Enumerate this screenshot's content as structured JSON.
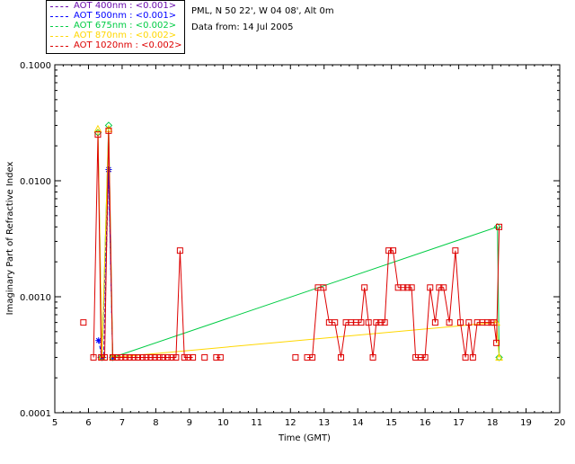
{
  "info": {
    "location": "PML, N 50 22', W 04 08', Alt 0m",
    "date_line": "Data from: 14 Jul 2005"
  },
  "legend": [
    {
      "label": "AOT  400nm : <0.001>",
      "color": "#6a0dad"
    },
    {
      "label": "AOT  500nm : <0.001>",
      "color": "#0000ff"
    },
    {
      "label": "AOT  675nm : <0.002>",
      "color": "#00cc44"
    },
    {
      "label": "AOT  870nm : <0.002>",
      "color": "#ffd700"
    },
    {
      "label": "AOT 1020nm : <0.002>",
      "color": "#dd0000"
    }
  ],
  "chart_data": {
    "type": "line",
    "xlabel": "Time (GMT)",
    "ylabel": "Imaginary Part of Refractive Index",
    "xlim": [
      5,
      20
    ],
    "ylim": [
      0.0001,
      0.1
    ],
    "yscale": "log",
    "x_ticks": [
      "5",
      "6",
      "7",
      "8",
      "9",
      "10",
      "11",
      "12",
      "13",
      "14",
      "15",
      "16",
      "17",
      "18",
      "19",
      "20"
    ],
    "y_ticks": [
      "0.0001",
      "0.0010",
      "0.0100",
      "0.1000"
    ],
    "series": [
      {
        "name": "AOT  400nm : <0.001>",
        "color": "#6a0dad",
        "marker": "cross",
        "points": [
          [
            6.35,
            0.0003
          ],
          [
            6.45,
            0.0003
          ],
          [
            6.6,
            0.012
          ],
          [
            6.72,
            0.0003
          ]
        ]
      },
      {
        "name": "AOT  500nm : <0.001>",
        "color": "#0000ff",
        "marker": "star",
        "points": [
          [
            6.3,
            0.00042
          ],
          [
            6.4,
            0.0003
          ],
          [
            6.6,
            0.0125
          ],
          [
            6.72,
            0.0003
          ]
        ]
      },
      {
        "name": "AOT  675nm : <0.002>",
        "color": "#00cc44",
        "marker": "diamond",
        "points": [
          [
            6.28,
            0.026
          ],
          [
            6.4,
            0.0003
          ],
          [
            6.6,
            0.03
          ],
          [
            6.72,
            0.0003
          ],
          [
            18.15,
            0.004
          ],
          [
            18.2,
            0.0003
          ]
        ]
      },
      {
        "name": "AOT  870nm : <0.002>",
        "color": "#ffd700",
        "marker": "triangle",
        "points": [
          [
            6.28,
            0.028
          ],
          [
            6.4,
            0.0003
          ],
          [
            6.6,
            0.028
          ],
          [
            6.72,
            0.0003
          ],
          [
            18.12,
            0.0006
          ],
          [
            18.2,
            0.0003
          ]
        ]
      },
      {
        "name": "AOT 1020nm : <0.002>",
        "color": "#dd0000",
        "marker": "square",
        "segments": [
          [
            [
              5.85,
              0.0006
            ]
          ],
          [
            [
              6.15,
              0.0003
            ],
            [
              6.28,
              0.025
            ],
            [
              6.38,
              0.0003
            ],
            [
              6.48,
              0.0003
            ],
            [
              6.6,
              0.027
            ],
            [
              6.72,
              0.0003
            ],
            [
              6.85,
              0.0003
            ],
            [
              6.97,
              0.0003
            ],
            [
              7.1,
              0.0003
            ],
            [
              7.22,
              0.0003
            ],
            [
              7.35,
              0.0003
            ],
            [
              7.47,
              0.0003
            ],
            [
              7.6,
              0.0003
            ],
            [
              7.72,
              0.0003
            ],
            [
              7.85,
              0.0003
            ],
            [
              7.97,
              0.0003
            ],
            [
              8.1,
              0.0003
            ],
            [
              8.22,
              0.0003
            ],
            [
              8.35,
              0.0003
            ],
            [
              8.47,
              0.0003
            ],
            [
              8.6,
              0.0003
            ],
            [
              8.72,
              0.0025
            ],
            [
              8.85,
              0.0003
            ],
            [
              8.97,
              0.0003
            ],
            [
              9.1,
              0.0003
            ]
          ],
          [
            [
              9.45,
              0.0003
            ]
          ],
          [
            [
              9.8,
              0.0003
            ],
            [
              9.92,
              0.0003
            ]
          ],
          [
            [
              12.15,
              0.0003
            ]
          ],
          [
            [
              12.5,
              0.0003
            ],
            [
              12.65,
              0.0003
            ],
            [
              12.82,
              0.0012
            ],
            [
              12.98,
              0.0012
            ],
            [
              13.15,
              0.0006
            ],
            [
              13.32,
              0.0006
            ],
            [
              13.5,
              0.0003
            ],
            [
              13.65,
              0.0006
            ],
            [
              13.8,
              0.0006
            ],
            [
              13.95,
              0.0006
            ],
            [
              14.1,
              0.0006
            ],
            [
              14.2,
              0.0012
            ],
            [
              14.32,
              0.0006
            ],
            [
              14.45,
              0.0003
            ],
            [
              14.55,
              0.0006
            ],
            [
              14.68,
              0.0006
            ],
            [
              14.8,
              0.0006
            ],
            [
              14.92,
              0.0025
            ],
            [
              15.05,
              0.0025
            ],
            [
              15.2,
              0.0012
            ],
            [
              15.35,
              0.0012
            ],
            [
              15.48,
              0.0012
            ],
            [
              15.6,
              0.0012
            ],
            [
              15.72,
              0.0003
            ],
            [
              15.87,
              0.0003
            ],
            [
              16.0,
              0.0003
            ],
            [
              16.15,
              0.0012
            ],
            [
              16.3,
              0.0006
            ],
            [
              16.42,
              0.0012
            ],
            [
              16.55,
              0.0012
            ],
            [
              16.72,
              0.0006
            ],
            [
              16.9,
              0.0025
            ],
            [
              17.05,
              0.0006
            ],
            [
              17.2,
              0.0003
            ],
            [
              17.3,
              0.0006
            ],
            [
              17.42,
              0.0003
            ],
            [
              17.55,
              0.0006
            ],
            [
              17.7,
              0.0006
            ],
            [
              17.85,
              0.0006
            ],
            [
              17.97,
              0.0006
            ],
            [
              18.05,
              0.0006
            ],
            [
              18.12,
              0.0004
            ],
            [
              18.2,
              0.004
            ]
          ]
        ]
      }
    ]
  }
}
